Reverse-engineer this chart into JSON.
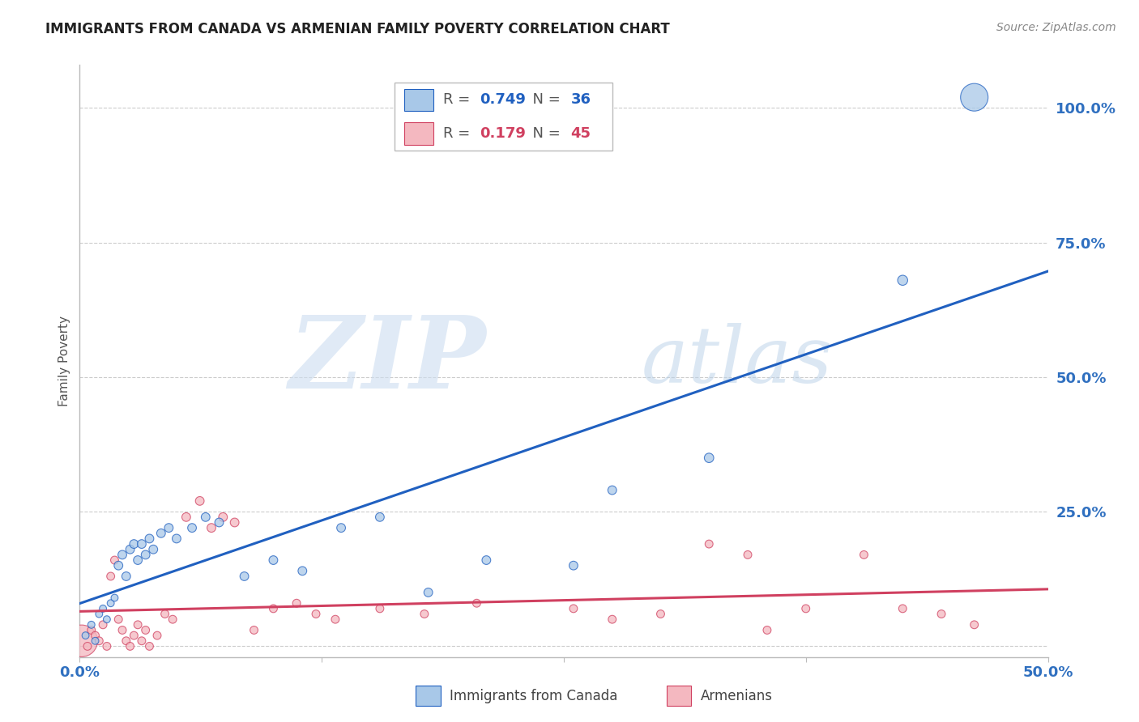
{
  "title": "IMMIGRANTS FROM CANADA VS ARMENIAN FAMILY POVERTY CORRELATION CHART",
  "source": "Source: ZipAtlas.com",
  "ylabel": "Family Poverty",
  "xlim": [
    0.0,
    0.5
  ],
  "ylim": [
    -0.02,
    1.08
  ],
  "canada_color": "#a8c8e8",
  "armenian_color": "#f4b8c0",
  "canada_line_color": "#2060c0",
  "armenian_line_color": "#d04060",
  "canada_points": [
    [
      0.003,
      0.02
    ],
    [
      0.006,
      0.04
    ],
    [
      0.008,
      0.01
    ],
    [
      0.01,
      0.06
    ],
    [
      0.012,
      0.07
    ],
    [
      0.014,
      0.05
    ],
    [
      0.016,
      0.08
    ],
    [
      0.018,
      0.09
    ],
    [
      0.02,
      0.15
    ],
    [
      0.022,
      0.17
    ],
    [
      0.024,
      0.13
    ],
    [
      0.026,
      0.18
    ],
    [
      0.028,
      0.19
    ],
    [
      0.03,
      0.16
    ],
    [
      0.032,
      0.19
    ],
    [
      0.034,
      0.17
    ],
    [
      0.036,
      0.2
    ],
    [
      0.038,
      0.18
    ],
    [
      0.042,
      0.21
    ],
    [
      0.046,
      0.22
    ],
    [
      0.05,
      0.2
    ],
    [
      0.058,
      0.22
    ],
    [
      0.065,
      0.24
    ],
    [
      0.072,
      0.23
    ],
    [
      0.085,
      0.13
    ],
    [
      0.1,
      0.16
    ],
    [
      0.115,
      0.14
    ],
    [
      0.135,
      0.22
    ],
    [
      0.155,
      0.24
    ],
    [
      0.18,
      0.1
    ],
    [
      0.21,
      0.16
    ],
    [
      0.255,
      0.15
    ],
    [
      0.275,
      0.29
    ],
    [
      0.325,
      0.35
    ],
    [
      0.425,
      0.68
    ],
    [
      0.462,
      1.02
    ]
  ],
  "armenian_points": [
    [
      0.001,
      0.01
    ],
    [
      0.004,
      0.0
    ],
    [
      0.006,
      0.03
    ],
    [
      0.008,
      0.02
    ],
    [
      0.01,
      0.01
    ],
    [
      0.012,
      0.04
    ],
    [
      0.014,
      0.0
    ],
    [
      0.016,
      0.13
    ],
    [
      0.018,
      0.16
    ],
    [
      0.02,
      0.05
    ],
    [
      0.022,
      0.03
    ],
    [
      0.024,
      0.01
    ],
    [
      0.026,
      0.0
    ],
    [
      0.028,
      0.02
    ],
    [
      0.03,
      0.04
    ],
    [
      0.032,
      0.01
    ],
    [
      0.034,
      0.03
    ],
    [
      0.036,
      0.0
    ],
    [
      0.04,
      0.02
    ],
    [
      0.044,
      0.06
    ],
    [
      0.048,
      0.05
    ],
    [
      0.055,
      0.24
    ],
    [
      0.062,
      0.27
    ],
    [
      0.068,
      0.22
    ],
    [
      0.074,
      0.24
    ],
    [
      0.08,
      0.23
    ],
    [
      0.09,
      0.03
    ],
    [
      0.1,
      0.07
    ],
    [
      0.112,
      0.08
    ],
    [
      0.122,
      0.06
    ],
    [
      0.132,
      0.05
    ],
    [
      0.155,
      0.07
    ],
    [
      0.178,
      0.06
    ],
    [
      0.205,
      0.08
    ],
    [
      0.255,
      0.07
    ],
    [
      0.275,
      0.05
    ],
    [
      0.3,
      0.06
    ],
    [
      0.325,
      0.19
    ],
    [
      0.345,
      0.17
    ],
    [
      0.355,
      0.03
    ],
    [
      0.375,
      0.07
    ],
    [
      0.405,
      0.17
    ],
    [
      0.425,
      0.07
    ],
    [
      0.445,
      0.06
    ],
    [
      0.462,
      0.04
    ]
  ],
  "canada_sizes": [
    40,
    40,
    40,
    40,
    40,
    40,
    40,
    40,
    60,
    60,
    60,
    60,
    60,
    60,
    60,
    60,
    60,
    60,
    60,
    60,
    60,
    60,
    60,
    60,
    60,
    60,
    60,
    60,
    60,
    60,
    60,
    60,
    60,
    70,
    80,
    600
  ],
  "armenian_sizes": [
    800,
    50,
    50,
    50,
    50,
    50,
    50,
    50,
    50,
    50,
    50,
    50,
    50,
    50,
    50,
    50,
    50,
    50,
    50,
    50,
    50,
    60,
    60,
    60,
    60,
    60,
    50,
    50,
    50,
    50,
    50,
    50,
    50,
    50,
    50,
    50,
    50,
    50,
    50,
    50,
    50,
    50,
    50,
    50,
    50
  ],
  "watermark_zip": "ZIP",
  "watermark_atlas": "atlas",
  "background_color": "#ffffff",
  "grid_color": "#cccccc"
}
